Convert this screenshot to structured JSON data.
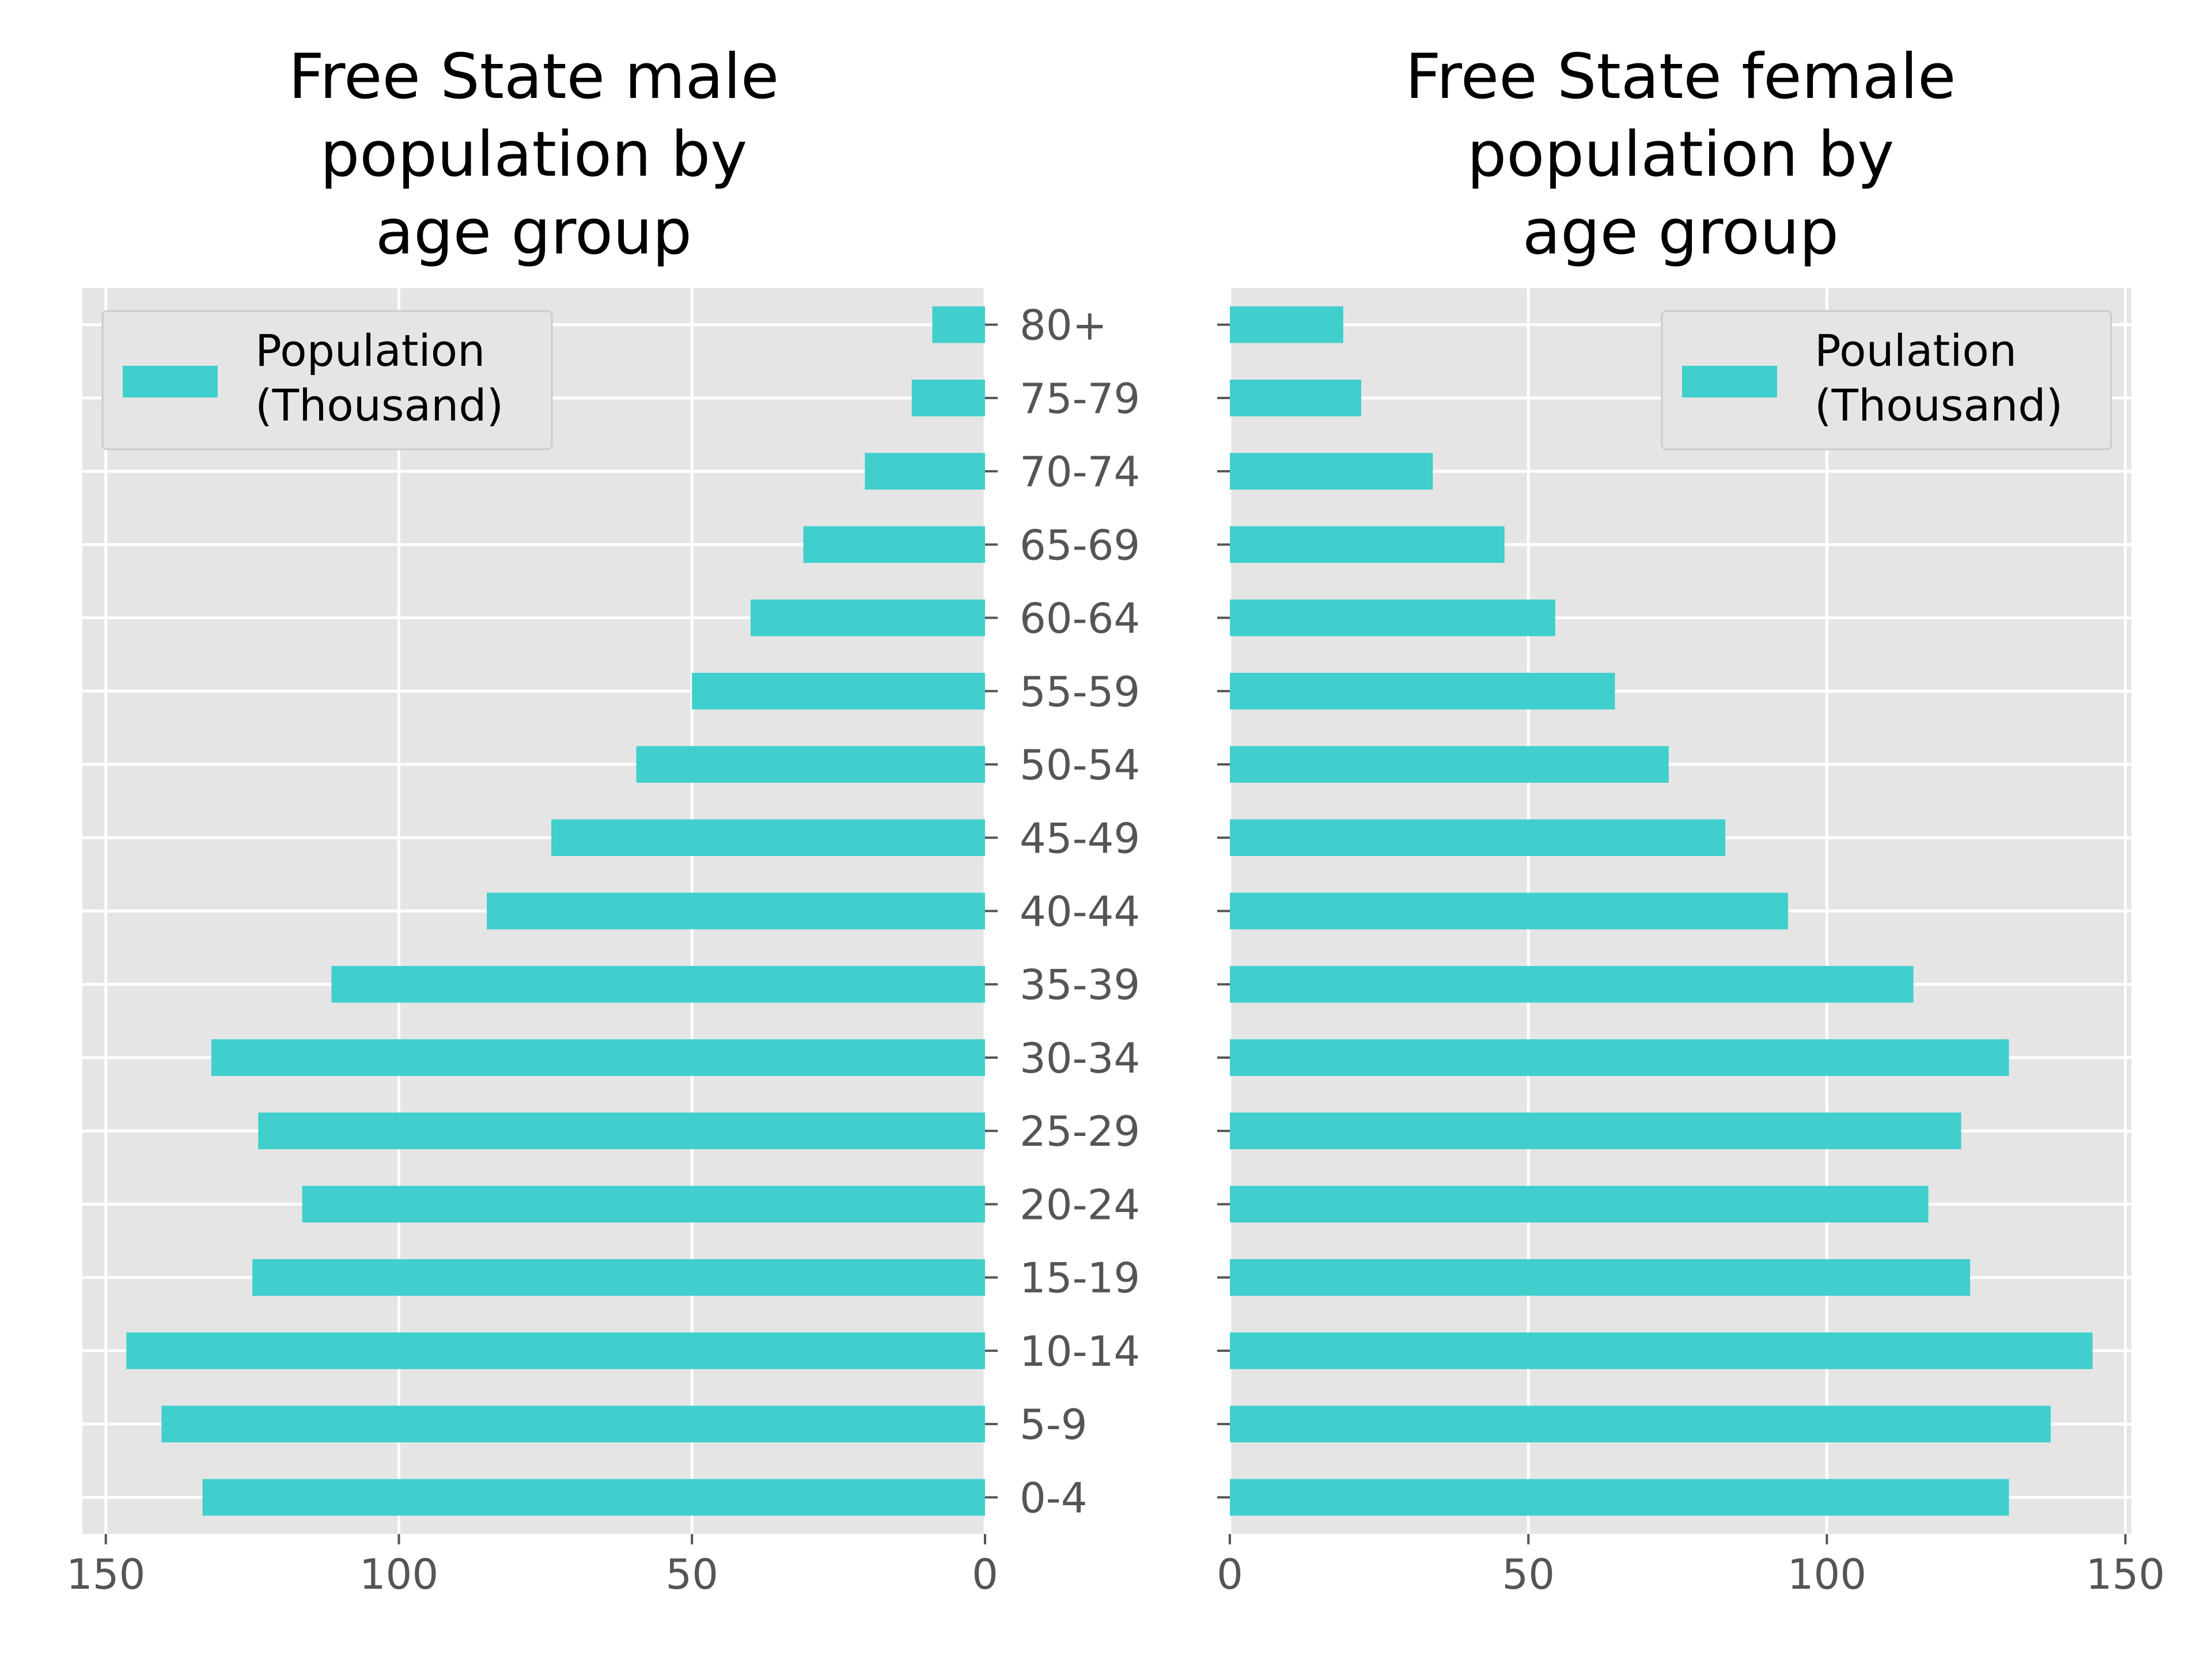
{
  "chart_data": [
    {
      "type": "bar",
      "orientation": "horizontal",
      "direction": "reversed",
      "title_lines": [
        "Free State male",
        "population by",
        "age group"
      ],
      "categories": [
        "0-4",
        "5-9",
        "10-14",
        "15-19",
        "20-24",
        "25-29",
        "30-34",
        "35-39",
        "40-44",
        "45-49",
        "50-54",
        "55-59",
        "60-64",
        "65-69",
        "70-74",
        "75-79",
        "80+"
      ],
      "series": [
        {
          "name_lines": [
            "Population",
            "(Thousand)"
          ],
          "values": [
            133.5,
            140.5,
            146.5,
            125,
            116.5,
            124,
            132,
            111.5,
            85,
            74,
            59.5,
            50,
            40,
            31,
            20.5,
            12.5,
            9
          ],
          "color": "#40CFCD"
        }
      ],
      "xlim": [
        154,
        0
      ],
      "xticks": [
        150,
        100,
        50,
        0
      ],
      "legend_position": "upper left",
      "grid": true
    },
    {
      "type": "bar",
      "orientation": "horizontal",
      "direction": "normal",
      "title_lines": [
        "Free State female",
        "population by",
        "age group"
      ],
      "categories": [
        "0-4",
        "5-9",
        "10-14",
        "15-19",
        "20-24",
        "25-29",
        "30-34",
        "35-39",
        "40-44",
        "45-49",
        "50-54",
        "55-59",
        "60-64",
        "65-69",
        "70-74",
        "75-79",
        "80+"
      ],
      "series": [
        {
          "name_lines": [
            "Poulation",
            "(Thousand)"
          ],
          "values": [
            130.5,
            137.5,
            144.5,
            124,
            117,
            122.5,
            130.5,
            114.5,
            93.5,
            83,
            73.5,
            64.5,
            54.5,
            46,
            34,
            22,
            19
          ],
          "color": "#40CFCD"
        }
      ],
      "xlim": [
        0,
        151
      ],
      "xticks": [
        0,
        50,
        100,
        150
      ],
      "legend_position": "upper right",
      "grid": true
    }
  ]
}
